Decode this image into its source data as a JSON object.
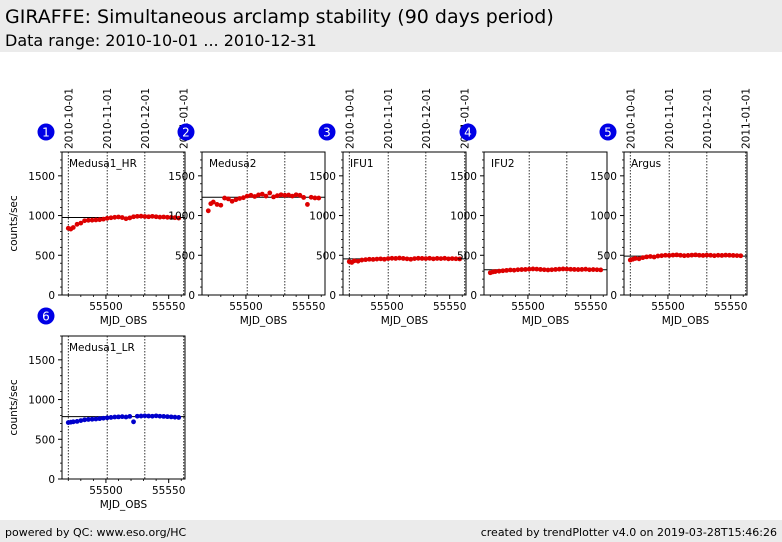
{
  "header": {
    "title": "GIRAFFE: Simultaneous arclamp stability (90 days period)",
    "subtitle": "Data range: 2010-10-01 ... 2010-12-31"
  },
  "footer": {
    "left": "powered by QC: www.eso.org/HC",
    "right": "created by trendPlotter v4.0 on 2019-03-28T15:46:26"
  },
  "chart_data": [
    {
      "type": "scatter",
      "number": "1",
      "label": "Medusa1_HR",
      "color": "#dd0000",
      "xlabel": "MJD_OBS",
      "ylabel": "counts/sec",
      "reference_line": 975,
      "xlim": [
        55465,
        55563
      ],
      "ylim": [
        0,
        1800
      ],
      "yticks": [
        0,
        500,
        1000,
        1500
      ],
      "xticks": [
        55500,
        55550
      ],
      "date_ticks": [
        {
          "label": "2010-10-01",
          "mjd": 55470
        },
        {
          "label": "2010-11-01",
          "mjd": 55501
        },
        {
          "label": "2010-12-01",
          "mjd": 55531
        },
        {
          "label": "2011-01-01",
          "mjd": 55562
        }
      ],
      "points": [
        [
          55470,
          840
        ],
        [
          55472,
          830
        ],
        [
          55474,
          850
        ],
        [
          55477,
          890
        ],
        [
          55480,
          905
        ],
        [
          55483,
          935
        ],
        [
          55486,
          940
        ],
        [
          55489,
          942
        ],
        [
          55492,
          945
        ],
        [
          55495,
          948
        ],
        [
          55498,
          955
        ],
        [
          55501,
          965
        ],
        [
          55504,
          972
        ],
        [
          55507,
          978
        ],
        [
          55510,
          982
        ],
        [
          55513,
          975
        ],
        [
          55516,
          960
        ],
        [
          55519,
          970
        ],
        [
          55522,
          985
        ],
        [
          55525,
          990
        ],
        [
          55528,
          992
        ],
        [
          55531,
          988
        ],
        [
          55534,
          985
        ],
        [
          55537,
          990
        ],
        [
          55540,
          985
        ],
        [
          55543,
          980
        ],
        [
          55546,
          982
        ],
        [
          55549,
          978
        ],
        [
          55552,
          976
        ],
        [
          55555,
          973
        ],
        [
          55558,
          968
        ]
      ]
    },
    {
      "type": "scatter",
      "number": "2",
      "label": "Medusa2",
      "color": "#dd0000",
      "xlabel": "MJD_OBS",
      "ylabel": "",
      "reference_line": 1230,
      "xlim": [
        55465,
        55563
      ],
      "ylim": [
        0,
        1800
      ],
      "yticks": [
        0,
        500,
        1000,
        1500
      ],
      "xticks": [
        55500,
        55550
      ],
      "date_ticks": [
        {
          "label": "",
          "mjd": 55501
        },
        {
          "label": "",
          "mjd": 55531
        }
      ],
      "points": [
        [
          55470,
          1060
        ],
        [
          55472,
          1150
        ],
        [
          55474,
          1170
        ],
        [
          55477,
          1140
        ],
        [
          55480,
          1130
        ],
        [
          55483,
          1220
        ],
        [
          55486,
          1210
        ],
        [
          55489,
          1180
        ],
        [
          55492,
          1200
        ],
        [
          55495,
          1215
        ],
        [
          55498,
          1225
        ],
        [
          55501,
          1245
        ],
        [
          55504,
          1255
        ],
        [
          55507,
          1240
        ],
        [
          55510,
          1260
        ],
        [
          55513,
          1270
        ],
        [
          55516,
          1245
        ],
        [
          55519,
          1285
        ],
        [
          55522,
          1235
        ],
        [
          55525,
          1250
        ],
        [
          55528,
          1262
        ],
        [
          55531,
          1255
        ],
        [
          55534,
          1258
        ],
        [
          55537,
          1245
        ],
        [
          55540,
          1262
        ],
        [
          55543,
          1255
        ],
        [
          55546,
          1228
        ],
        [
          55549,
          1140
        ],
        [
          55552,
          1230
        ],
        [
          55555,
          1222
        ],
        [
          55558,
          1220
        ]
      ]
    },
    {
      "type": "scatter",
      "number": "3",
      "label": "IFU1",
      "color": "#dd0000",
      "xlabel": "MJD_OBS",
      "ylabel": "",
      "reference_line": 455,
      "xlim": [
        55465,
        55563
      ],
      "ylim": [
        0,
        1800
      ],
      "yticks": [
        0,
        500,
        1000,
        1500
      ],
      "xticks": [
        55500,
        55550
      ],
      "date_ticks": [
        {
          "label": "2010-10-01",
          "mjd": 55470
        },
        {
          "label": "2010-11-01",
          "mjd": 55501
        },
        {
          "label": "2010-12-01",
          "mjd": 55531
        },
        {
          "label": "2011-01-01",
          "mjd": 55562
        }
      ],
      "points": [
        [
          55470,
          420
        ],
        [
          55472,
          410
        ],
        [
          55474,
          430
        ],
        [
          55477,
          425
        ],
        [
          55480,
          440
        ],
        [
          55483,
          445
        ],
        [
          55486,
          450
        ],
        [
          55489,
          448
        ],
        [
          55492,
          452
        ],
        [
          55495,
          455
        ],
        [
          55498,
          450
        ],
        [
          55501,
          458
        ],
        [
          55504,
          462
        ],
        [
          55507,
          460
        ],
        [
          55510,
          465
        ],
        [
          55513,
          460
        ],
        [
          55516,
          455
        ],
        [
          55519,
          450
        ],
        [
          55522,
          458
        ],
        [
          55525,
          462
        ],
        [
          55528,
          460
        ],
        [
          55531,
          458
        ],
        [
          55534,
          462
        ],
        [
          55537,
          455
        ],
        [
          55540,
          460
        ],
        [
          55543,
          458
        ],
        [
          55546,
          462
        ],
        [
          55549,
          455
        ],
        [
          55552,
          458
        ],
        [
          55555,
          456
        ],
        [
          55558,
          454
        ]
      ]
    },
    {
      "type": "scatter",
      "number": "4",
      "label": "IFU2",
      "color": "#dd0000",
      "xlabel": "MJD_OBS",
      "ylabel": "",
      "reference_line": 318,
      "xlim": [
        55465,
        55563
      ],
      "ylim": [
        0,
        1800
      ],
      "yticks": [
        0,
        500,
        1000,
        1500
      ],
      "xticks": [
        55500,
        55550
      ],
      "date_ticks": [
        {
          "label": "",
          "mjd": 55501
        },
        {
          "label": "",
          "mjd": 55531
        }
      ],
      "points": [
        [
          55470,
          280
        ],
        [
          55472,
          290
        ],
        [
          55474,
          295
        ],
        [
          55477,
          300
        ],
        [
          55480,
          305
        ],
        [
          55483,
          310
        ],
        [
          55486,
          315
        ],
        [
          55489,
          312
        ],
        [
          55492,
          318
        ],
        [
          55495,
          320
        ],
        [
          55498,
          322
        ],
        [
          55501,
          325
        ],
        [
          55504,
          328
        ],
        [
          55507,
          326
        ],
        [
          55510,
          322
        ],
        [
          55513,
          318
        ],
        [
          55516,
          315
        ],
        [
          55519,
          318
        ],
        [
          55522,
          322
        ],
        [
          55525,
          325
        ],
        [
          55528,
          328
        ],
        [
          55531,
          326
        ],
        [
          55534,
          324
        ],
        [
          55537,
          322
        ],
        [
          55540,
          320
        ],
        [
          55543,
          322
        ],
        [
          55546,
          325
        ],
        [
          55549,
          318
        ],
        [
          55552,
          320
        ],
        [
          55555,
          318
        ],
        [
          55558,
          316
        ]
      ]
    },
    {
      "type": "scatter",
      "number": "5",
      "label": "Argus",
      "color": "#dd0000",
      "xlabel": "MJD_OBS",
      "ylabel": "",
      "reference_line": 490,
      "xlim": [
        55465,
        55563
      ],
      "ylim": [
        0,
        1800
      ],
      "yticks": [
        0,
        500,
        1000,
        1500
      ],
      "xticks": [
        55500,
        55550
      ],
      "date_ticks": [
        {
          "label": "2010-10-01",
          "mjd": 55470
        },
        {
          "label": "2010-11-01",
          "mjd": 55501
        },
        {
          "label": "2010-12-01",
          "mjd": 55531
        },
        {
          "label": "2011-01-01",
          "mjd": 55562
        }
      ],
      "points": [
        [
          55470,
          440
        ],
        [
          55472,
          450
        ],
        [
          55474,
          460
        ],
        [
          55477,
          455
        ],
        [
          55480,
          470
        ],
        [
          55483,
          480
        ],
        [
          55486,
          485
        ],
        [
          55489,
          478
        ],
        [
          55492,
          490
        ],
        [
          55495,
          495
        ],
        [
          55498,
          500
        ],
        [
          55501,
          498
        ],
        [
          55504,
          502
        ],
        [
          55507,
          505
        ],
        [
          55510,
          500
        ],
        [
          55513,
          495
        ],
        [
          55516,
          498
        ],
        [
          55519,
          502
        ],
        [
          55522,
          505
        ],
        [
          55525,
          500
        ],
        [
          55528,
          498
        ],
        [
          55531,
          502
        ],
        [
          55534,
          500
        ],
        [
          55537,
          495
        ],
        [
          55540,
          500
        ],
        [
          55543,
          498
        ],
        [
          55546,
          502
        ],
        [
          55549,
          500
        ],
        [
          55552,
          498
        ],
        [
          55555,
          496
        ],
        [
          55558,
          494
        ]
      ]
    },
    {
      "type": "scatter",
      "number": "6",
      "label": "Medusa1_LR",
      "color": "#0000cc",
      "xlabel": "MJD_OBS",
      "ylabel": "counts/sec",
      "reference_line": 785,
      "xlim": [
        55465,
        55563
      ],
      "ylim": [
        0,
        1800
      ],
      "yticks": [
        0,
        500,
        1000,
        1500
      ],
      "xticks": [
        55500,
        55550
      ],
      "date_ticks": [
        {
          "label": "",
          "mjd": 55470
        },
        {
          "label": "",
          "mjd": 55501
        },
        {
          "label": "",
          "mjd": 55531
        },
        {
          "label": "",
          "mjd": 55562
        }
      ],
      "points": [
        [
          55470,
          710
        ],
        [
          55472,
          715
        ],
        [
          55474,
          720
        ],
        [
          55477,
          725
        ],
        [
          55480,
          735
        ],
        [
          55483,
          745
        ],
        [
          55486,
          750
        ],
        [
          55489,
          752
        ],
        [
          55492,
          755
        ],
        [
          55495,
          760
        ],
        [
          55498,
          765
        ],
        [
          55501,
          770
        ],
        [
          55504,
          775
        ],
        [
          55507,
          780
        ],
        [
          55510,
          782
        ],
        [
          55513,
          785
        ],
        [
          55516,
          780
        ],
        [
          55519,
          788
        ],
        [
          55522,
          720
        ],
        [
          55525,
          790
        ],
        [
          55528,
          792
        ],
        [
          55531,
          795
        ],
        [
          55534,
          792
        ],
        [
          55537,
          790
        ],
        [
          55540,
          795
        ],
        [
          55543,
          790
        ],
        [
          55546,
          788
        ],
        [
          55549,
          785
        ],
        [
          55552,
          782
        ],
        [
          55555,
          778
        ],
        [
          55558,
          775
        ]
      ]
    }
  ]
}
